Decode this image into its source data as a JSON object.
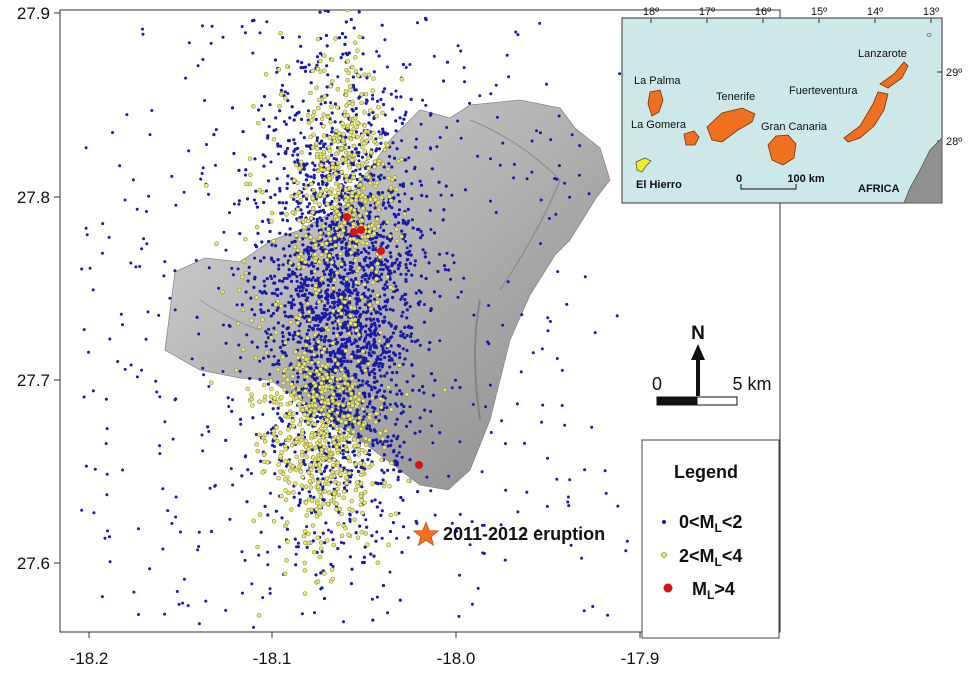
{
  "axes": {
    "x_ticks": [
      "-18.2",
      "-18.1",
      "-18.0",
      "-17.9"
    ],
    "y_ticks": [
      "27.9",
      "27.8",
      "27.7",
      "27.6"
    ]
  },
  "legend": {
    "title": "Legend",
    "items": [
      {
        "prefix": "0<M",
        "sub": "L",
        "suffix": "<2",
        "color": "#1a1aa8"
      },
      {
        "prefix": "2<M",
        "sub": "L",
        "suffix": "<4",
        "color": "#e8e870"
      },
      {
        "prefix": "M",
        "sub": "L",
        "suffix": ">4",
        "color": "#dd1111"
      }
    ]
  },
  "eruption": {
    "label": "2011-2012 eruption",
    "color": "#f07020"
  },
  "scale_bar": {
    "start": "0",
    "end": "5 km"
  },
  "north_arrow": {
    "label": "N"
  },
  "inset": {
    "top_ticks": [
      "18º",
      "17º",
      "16º",
      "15º",
      "14º",
      "13º"
    ],
    "right_ticks": [
      "29º",
      "28º"
    ],
    "islands": {
      "la_palma": "La Palma",
      "la_gomera": "La Gomera",
      "tenerife": "Tenerife",
      "gran_canaria": "Gran Canaria",
      "fuerteventura": "Fuerteventura",
      "lanzarote": "Lanzarote",
      "el_hierro": "El Hierro"
    },
    "scale_start": "0",
    "scale_end": "100 km",
    "africa": "AFRICA",
    "sea_color": "#cce8e8",
    "island_color": "#f07020",
    "hierro_color": "#eeee22"
  },
  "colors": {
    "island_relief": "#b8b8b8",
    "small_events": "#1a1aa8",
    "mid_events": "#e8e870",
    "large_events": "#dd1111"
  }
}
